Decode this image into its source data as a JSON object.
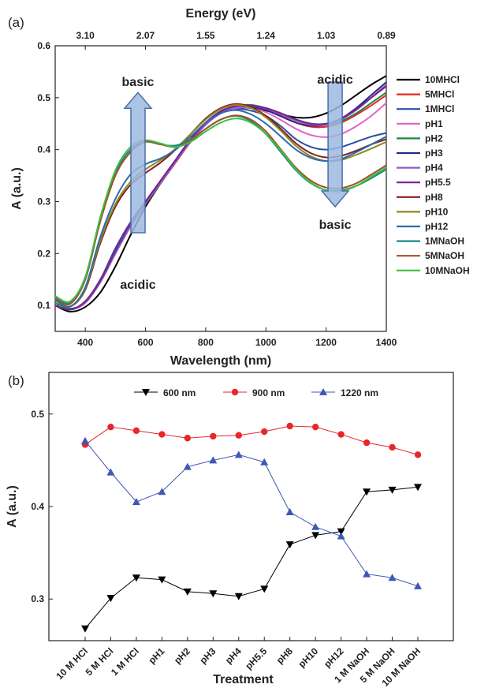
{
  "chart_data": [
    {
      "panel": "(a)",
      "type": "line",
      "xlabel": "Wavelength (nm)",
      "ylabel": "A (a.u.)",
      "top_axis_label": "Energy (eV)",
      "xlim": [
        300,
        1400
      ],
      "ylim": [
        0.05,
        0.6
      ],
      "x_ticks": [
        "400",
        "600",
        "800",
        "1000",
        "1200",
        "1400"
      ],
      "y_ticks": [
        "0.1",
        "0.2",
        "0.3",
        "0.4",
        "0.5",
        "0.6"
      ],
      "top_ticks": [
        {
          "label": "3.10",
          "wavelength": 400
        },
        {
          "label": "2.07",
          "wavelength": 600
        },
        {
          "label": "1.55",
          "wavelength": 800
        },
        {
          "label": "1.24",
          "wavelength": 1000
        },
        {
          "label": "1.03",
          "wavelength": 1200
        },
        {
          "label": "0.89",
          "wavelength": 1400
        }
      ],
      "x": [
        300,
        350,
        400,
        450,
        500,
        550,
        600,
        650,
        700,
        750,
        800,
        850,
        900,
        950,
        1000,
        1050,
        1100,
        1150,
        1200,
        1250,
        1300,
        1350,
        1400
      ],
      "series": [
        {
          "name": "10MHCl",
          "color": "#000000",
          "values": [
            0.1,
            0.088,
            0.097,
            0.125,
            0.175,
            0.235,
            0.29,
            0.335,
            0.38,
            0.42,
            0.452,
            0.472,
            0.48,
            0.48,
            0.475,
            0.468,
            0.462,
            0.462,
            0.47,
            0.485,
            0.505,
            0.525,
            0.542
          ]
        },
        {
          "name": "5MHCl",
          "color": "#e8262a",
          "values": [
            0.1,
            0.092,
            0.105,
            0.145,
            0.2,
            0.252,
            0.295,
            0.335,
            0.375,
            0.415,
            0.448,
            0.47,
            0.482,
            0.484,
            0.478,
            0.465,
            0.452,
            0.444,
            0.444,
            0.452,
            0.467,
            0.485,
            0.505
          ]
        },
        {
          "name": "1MHCl",
          "color": "#2b4ea2",
          "values": [
            0.1,
            0.092,
            0.108,
            0.15,
            0.21,
            0.26,
            0.3,
            0.34,
            0.38,
            0.415,
            0.45,
            0.47,
            0.478,
            0.475,
            0.465,
            0.445,
            0.42,
            0.405,
            0.4,
            0.405,
            0.415,
            0.425,
            0.432
          ]
        },
        {
          "name": "pH1",
          "color": "#e262c8",
          "values": [
            0.1,
            0.092,
            0.107,
            0.148,
            0.205,
            0.258,
            0.3,
            0.34,
            0.38,
            0.418,
            0.45,
            0.47,
            0.48,
            0.48,
            0.472,
            0.457,
            0.44,
            0.428,
            0.424,
            0.43,
            0.445,
            0.465,
            0.49
          ]
        },
        {
          "name": "pH2",
          "color": "#1a8a3a",
          "values": [
            0.105,
            0.094,
            0.106,
            0.145,
            0.2,
            0.252,
            0.295,
            0.335,
            0.378,
            0.418,
            0.45,
            0.472,
            0.484,
            0.486,
            0.48,
            0.47,
            0.458,
            0.45,
            0.448,
            0.455,
            0.47,
            0.49,
            0.51
          ]
        },
        {
          "name": "pH3",
          "color": "#232b85",
          "values": [
            0.1,
            0.092,
            0.107,
            0.147,
            0.205,
            0.256,
            0.298,
            0.338,
            0.378,
            0.418,
            0.45,
            0.472,
            0.482,
            0.482,
            0.476,
            0.464,
            0.452,
            0.446,
            0.448,
            0.46,
            0.48,
            0.505,
            0.53
          ]
        },
        {
          "name": "pH4",
          "color": "#8e5bc8",
          "values": [
            0.1,
            0.092,
            0.105,
            0.145,
            0.2,
            0.253,
            0.296,
            0.336,
            0.376,
            0.416,
            0.448,
            0.47,
            0.482,
            0.484,
            0.479,
            0.468,
            0.456,
            0.448,
            0.448,
            0.458,
            0.476,
            0.5,
            0.525
          ]
        },
        {
          "name": "pH5.5",
          "color": "#7a1f8f",
          "values": [
            0.1,
            0.092,
            0.108,
            0.148,
            0.205,
            0.258,
            0.3,
            0.34,
            0.38,
            0.42,
            0.452,
            0.474,
            0.484,
            0.485,
            0.48,
            0.47,
            0.458,
            0.45,
            0.45,
            0.46,
            0.478,
            0.5,
            0.522
          ]
        },
        {
          "name": "pH8",
          "color": "#8b1b1b",
          "values": [
            0.11,
            0.098,
            0.13,
            0.22,
            0.29,
            0.332,
            0.355,
            0.375,
            0.4,
            0.43,
            0.46,
            0.48,
            0.488,
            0.482,
            0.465,
            0.44,
            0.412,
            0.393,
            0.385,
            0.388,
            0.398,
            0.41,
            0.42
          ]
        },
        {
          "name": "pH10",
          "color": "#8a8a22",
          "values": [
            0.11,
            0.098,
            0.132,
            0.225,
            0.295,
            0.338,
            0.362,
            0.38,
            0.402,
            0.43,
            0.458,
            0.478,
            0.486,
            0.48,
            0.462,
            0.436,
            0.407,
            0.387,
            0.378,
            0.38,
            0.39,
            0.402,
            0.415
          ]
        },
        {
          "name": "pH12",
          "color": "#2c6aad",
          "values": [
            0.11,
            0.098,
            0.135,
            0.232,
            0.305,
            0.352,
            0.372,
            0.383,
            0.4,
            0.425,
            0.452,
            0.47,
            0.476,
            0.468,
            0.45,
            0.425,
            0.4,
            0.384,
            0.378,
            0.382,
            0.395,
            0.41,
            0.425
          ]
        },
        {
          "name": "1MNaOH",
          "color": "#168a8a",
          "values": [
            0.115,
            0.105,
            0.15,
            0.265,
            0.355,
            0.4,
            0.415,
            0.41,
            0.408,
            0.42,
            0.44,
            0.458,
            0.465,
            0.455,
            0.43,
            0.395,
            0.36,
            0.335,
            0.322,
            0.322,
            0.33,
            0.345,
            0.362
          ]
        },
        {
          "name": "5MNaOH",
          "color": "#a0522d",
          "values": [
            0.113,
            0.103,
            0.15,
            0.262,
            0.35,
            0.395,
            0.415,
            0.41,
            0.405,
            0.418,
            0.44,
            0.458,
            0.466,
            0.458,
            0.435,
            0.4,
            0.365,
            0.34,
            0.327,
            0.326,
            0.335,
            0.352,
            0.37
          ]
        },
        {
          "name": "10MNaOH",
          "color": "#3fbf3f",
          "values": [
            0.118,
            0.108,
            0.155,
            0.27,
            0.36,
            0.405,
            0.418,
            0.412,
            0.405,
            0.415,
            0.435,
            0.452,
            0.46,
            0.452,
            0.43,
            0.398,
            0.362,
            0.336,
            0.322,
            0.32,
            0.33,
            0.348,
            0.366
          ]
        }
      ],
      "annotations": [
        {
          "text": "basic",
          "at": [
            575,
            0.53
          ]
        },
        {
          "text": "acidic",
          "at": [
            575,
            0.14
          ]
        },
        {
          "text": "acidic",
          "at": [
            1230,
            0.535
          ]
        },
        {
          "text": "basic",
          "at": [
            1230,
            0.255
          ]
        }
      ],
      "arrows": [
        {
          "direction": "up",
          "wavelength": 575,
          "from": 0.24,
          "to": 0.51
        },
        {
          "direction": "down",
          "wavelength": 1230,
          "from": 0.53,
          "to": 0.29
        }
      ]
    },
    {
      "panel": "(b)",
      "type": "line",
      "xlabel": "Treatment",
      "ylabel": "A (a.u.)",
      "ylim": [
        0.255,
        0.545
      ],
      "y_ticks": [
        "0.3",
        "0.4",
        "0.5"
      ],
      "categories": [
        "10 M HCl",
        "5 M HCl",
        "1 M HCl",
        "pH1",
        "pH2",
        "pH3",
        "pH4",
        "pH5.5",
        "pH8",
        "pH10",
        "pH12",
        "1 M NaOH",
        "5 M NaOH",
        "10 M NaOH"
      ],
      "legend_position": "top",
      "series": [
        {
          "name": "600 nm",
          "color": "#000000",
          "marker": "triangle-down",
          "values": [
            0.268,
            0.301,
            0.323,
            0.321,
            0.308,
            0.306,
            0.303,
            0.311,
            0.359,
            0.369,
            0.373,
            0.416,
            0.418,
            0.421
          ]
        },
        {
          "name": "900 nm",
          "color": "#e8262a",
          "marker": "circle",
          "values": [
            0.467,
            0.486,
            0.482,
            0.478,
            0.474,
            0.476,
            0.477,
            0.481,
            0.487,
            0.486,
            0.478,
            0.469,
            0.464,
            0.456
          ]
        },
        {
          "name": "1220 nm",
          "color": "#3f57b5",
          "marker": "triangle-up",
          "values": [
            0.471,
            0.437,
            0.405,
            0.416,
            0.443,
            0.45,
            0.456,
            0.448,
            0.394,
            0.378,
            0.368,
            0.327,
            0.323,
            0.314
          ]
        }
      ]
    }
  ]
}
